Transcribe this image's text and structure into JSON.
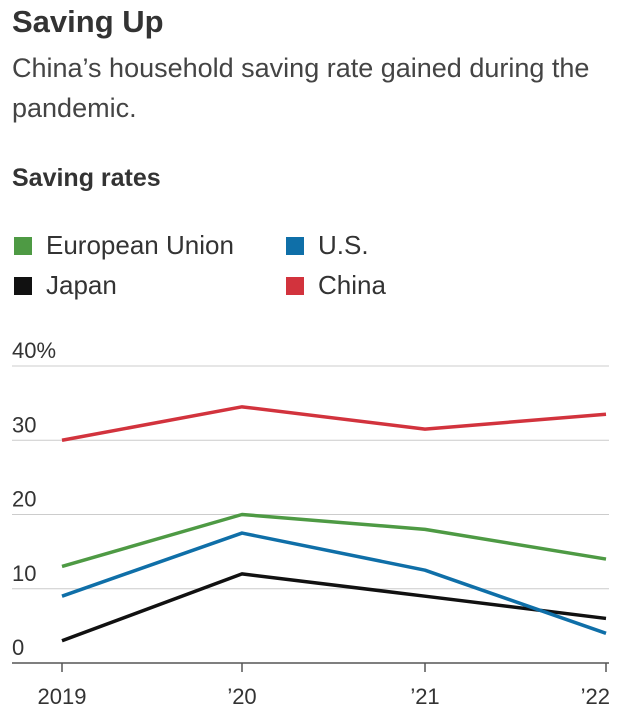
{
  "header": {
    "title": "Saving Up",
    "subtitle": "China’s household saving rate gained during the pandemic.",
    "section": "Saving rates"
  },
  "legend": [
    {
      "label": "European Union",
      "color": "#4e9a44"
    },
    {
      "label": "U.S.",
      "color": "#0f6fa8"
    },
    {
      "label": "Japan",
      "color": "#111111"
    },
    {
      "label": "China",
      "color": "#d2333d"
    }
  ],
  "chart_data": {
    "type": "line",
    "x": [
      "2019",
      "’20",
      "’21",
      "’22"
    ],
    "ylim": [
      0,
      40
    ],
    "y_ticks": [
      0,
      10,
      20,
      30,
      40
    ],
    "y_tick_labels": [
      "0",
      "10",
      "20",
      "30",
      "40%"
    ],
    "grid": true,
    "legend_position": "top",
    "series": [
      {
        "name": "European Union",
        "color": "#4e9a44",
        "values": [
          13,
          20,
          18,
          14
        ]
      },
      {
        "name": "U.S.",
        "color": "#0f6fa8",
        "values": [
          9,
          17.5,
          12.5,
          4
        ]
      },
      {
        "name": "Japan",
        "color": "#111111",
        "values": [
          3,
          12,
          9,
          6
        ]
      },
      {
        "name": "China",
        "color": "#d2333d",
        "values": [
          30,
          34.5,
          31.5,
          33.5
        ]
      }
    ]
  }
}
